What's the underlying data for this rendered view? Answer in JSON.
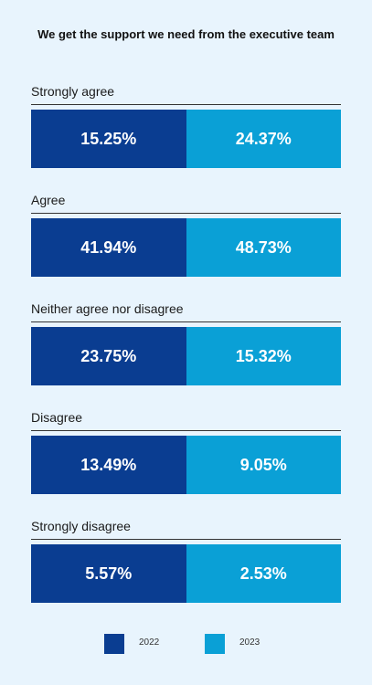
{
  "chart_data": {
    "type": "bar",
    "title": "We get the support we need from the executive team",
    "categories": [
      "Strongly agree",
      "Agree",
      "Neither agree nor disagree",
      "Disagree",
      "Strongly disagree"
    ],
    "series": [
      {
        "name": "2022",
        "color": "#0a3d91",
        "values": [
          15.25,
          41.94,
          23.75,
          13.49,
          5.57
        ],
        "labels": [
          "15.25%",
          "41.94%",
          "23.75%",
          "13.49%",
          "5.57%"
        ]
      },
      {
        "name": "2023",
        "color": "#0aa0d6",
        "values": [
          24.37,
          48.73,
          15.32,
          9.05,
          2.53
        ],
        "labels": [
          "24.37%",
          "48.73%",
          "15.32%",
          "9.05%",
          "2.53%"
        ]
      }
    ],
    "legend": "bottom"
  }
}
